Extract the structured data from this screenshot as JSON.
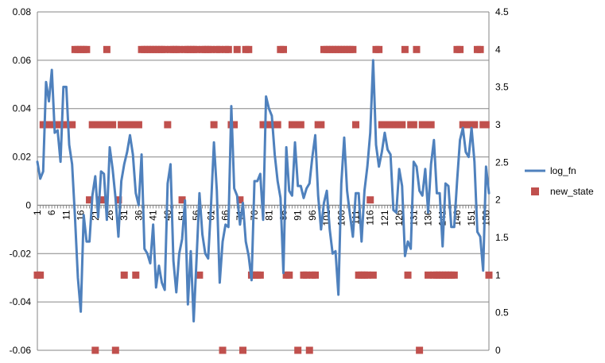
{
  "chart_data": {
    "type": "line",
    "title": "",
    "xlabel": "",
    "ylabel": "",
    "y2label": "",
    "x": [
      1,
      2,
      3,
      4,
      5,
      6,
      7,
      8,
      9,
      10,
      11,
      12,
      13,
      14,
      15,
      16,
      17,
      18,
      19,
      20,
      21,
      22,
      23,
      24,
      25,
      26,
      27,
      28,
      29,
      30,
      31,
      32,
      33,
      34,
      35,
      36,
      37,
      38,
      39,
      40,
      41,
      42,
      43,
      44,
      45,
      46,
      47,
      48,
      49,
      50,
      51,
      52,
      53,
      54,
      55,
      56,
      57,
      58,
      59,
      60,
      61,
      62,
      63,
      64,
      65,
      66,
      67,
      68,
      69,
      70,
      71,
      72,
      73,
      74,
      75,
      76,
      77,
      78,
      79,
      80,
      81,
      82,
      83,
      84,
      85,
      86,
      87,
      88,
      89,
      90,
      91,
      92,
      93,
      94,
      95,
      96,
      97,
      98,
      99,
      100,
      101,
      102,
      103,
      104,
      105,
      106,
      107,
      108,
      109,
      110,
      111,
      112,
      113,
      114,
      115,
      116,
      117,
      118,
      119,
      120,
      121,
      122,
      123,
      124,
      125,
      126,
      127,
      128,
      129,
      130,
      131,
      132,
      133,
      134,
      135,
      136,
      137,
      138,
      139,
      140,
      141,
      142,
      143,
      144,
      145,
      146,
      147,
      148,
      149,
      150,
      151,
      152,
      153,
      154,
      155,
      156,
      157
    ],
    "x_tick_labels": [
      "1",
      "6",
      "11",
      "16",
      "21",
      "26",
      "31",
      "36",
      "41",
      "46",
      "51",
      "56",
      "61",
      "66",
      "71",
      "76",
      "81",
      "86",
      "91",
      "96",
      "101",
      "106",
      "111",
      "116",
      "121",
      "126",
      "131",
      "136",
      "141",
      "146",
      "151",
      "156"
    ],
    "ylim": [
      -0.06,
      0.08
    ],
    "y_ticks": [
      "-0.06",
      "-0.04",
      "-0.02",
      "0",
      "0.02",
      "0.04",
      "0.06",
      "0.08"
    ],
    "y2lim": [
      0,
      4.5
    ],
    "y2_ticks": [
      "0",
      "0.5",
      "1",
      "1.5",
      "2",
      "2.5",
      "3",
      "3.5",
      "4",
      "4.5"
    ],
    "grid": true,
    "legend_position": "right",
    "series": [
      {
        "name": "log_fn",
        "kind": "line",
        "axis": "primary",
        "color": "#4F81BD",
        "values": [
          0.018,
          0.011,
          0.014,
          0.051,
          0.043,
          0.056,
          0.03,
          0.031,
          0.018,
          0.049,
          0.049,
          0.025,
          0.017,
          -0.005,
          -0.03,
          -0.044,
          -0.004,
          -0.015,
          -0.015,
          0.004,
          0.012,
          -0.005,
          0.014,
          0.013,
          -0.006,
          0.024,
          0.015,
          0.003,
          -0.013,
          0.01,
          0.017,
          0.022,
          0.029,
          0.021,
          0.005,
          0.0,
          0.021,
          -0.018,
          -0.02,
          -0.024,
          -0.008,
          -0.034,
          -0.025,
          -0.032,
          -0.035,
          0.009,
          0.017,
          -0.023,
          -0.036,
          -0.02,
          -0.014,
          0.002,
          -0.041,
          -0.019,
          -0.048,
          -0.022,
          0.005,
          -0.012,
          -0.02,
          -0.022,
          0.0,
          0.026,
          0.006,
          -0.032,
          -0.015,
          -0.008,
          -0.009,
          0.041,
          0.007,
          0.004,
          -0.008,
          0.001,
          -0.015,
          -0.021,
          -0.031,
          0.01,
          0.01,
          0.013,
          -0.006,
          0.045,
          0.04,
          0.037,
          0.021,
          0.01,
          0.003,
          -0.028,
          0.024,
          0.006,
          0.004,
          0.026,
          0.008,
          0.008,
          0.003,
          0.007,
          0.009,
          0.02,
          0.029,
          0.004,
          -0.01,
          0.001,
          0.006,
          -0.01,
          -0.02,
          -0.019,
          -0.037,
          0.009,
          0.028,
          0.006,
          -0.004,
          -0.013,
          0.005,
          0.005,
          -0.015,
          0.006,
          0.016,
          0.03,
          0.06,
          0.025,
          0.016,
          0.022,
          0.03,
          0.023,
          0.021,
          -0.002,
          -0.003,
          0.015,
          0.008,
          -0.021,
          -0.015,
          -0.018,
          0.018,
          0.016,
          0.006,
          0.004,
          0.015,
          -0.003,
          0.017,
          0.027,
          0.005,
          0.005,
          -0.017,
          0.009,
          0.008,
          -0.009,
          -0.009,
          0.01,
          0.027,
          0.032,
          0.022,
          0.02,
          0.032,
          0.018,
          -0.011,
          -0.013,
          -0.027,
          0.016,
          0.005
        ]
      },
      {
        "name": "new_state",
        "kind": "scatter",
        "axis": "secondary",
        "color": "#C0504D",
        "values": [
          1,
          1,
          3,
          3,
          3,
          3,
          3,
          3,
          3,
          3,
          3,
          3,
          3,
          4,
          4,
          4,
          4,
          4,
          2,
          3,
          0,
          3,
          2,
          3,
          4,
          3,
          3,
          0,
          2,
          3,
          1,
          3,
          3,
          3,
          1,
          3,
          4,
          4,
          4,
          4,
          4,
          4,
          4,
          4,
          4,
          3,
          4,
          4,
          4,
          4,
          2,
          4,
          4,
          4,
          4,
          4,
          1,
          4,
          4,
          4,
          4,
          3,
          4,
          4,
          0,
          4,
          4,
          3,
          3,
          4,
          2,
          0,
          4,
          4,
          1,
          1,
          1,
          1,
          3,
          3,
          3,
          3,
          3,
          3,
          4,
          4,
          1,
          1,
          3,
          3,
          0,
          3,
          1,
          1,
          0,
          1,
          1,
          3,
          3,
          4,
          4,
          4,
          4,
          4,
          4,
          4,
          4,
          4,
          4,
          4,
          3,
          1,
          1,
          1,
          1,
          2,
          1,
          4,
          4,
          3,
          3,
          3,
          3,
          3,
          3,
          3,
          3,
          4,
          1,
          3,
          3,
          4,
          0,
          3,
          3,
          1,
          3,
          1,
          1,
          1,
          1,
          1,
          1,
          1,
          1,
          4,
          4,
          3,
          3,
          3,
          3,
          3,
          4,
          4,
          3,
          3,
          1
        ]
      }
    ]
  }
}
